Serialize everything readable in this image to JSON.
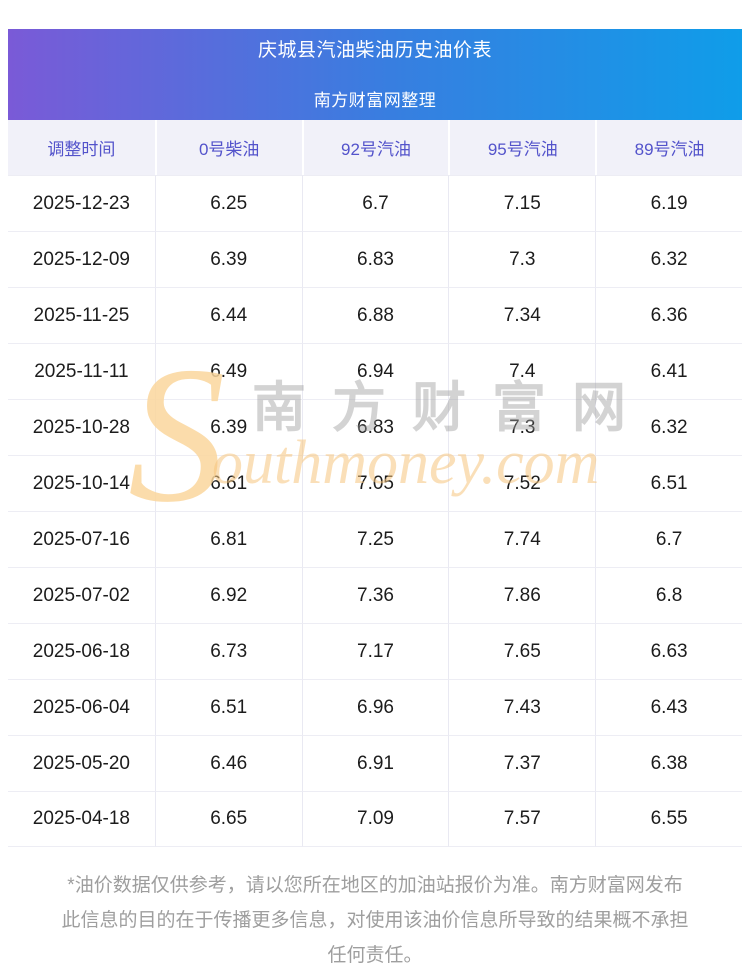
{
  "banner": {
    "title": "庆城县汽油柴油历史油价表",
    "subtitle": "南方财富网整理"
  },
  "table": {
    "columns": [
      "调整时间",
      "0号柴油",
      "92号汽油",
      "95号汽油",
      "89号汽油"
    ],
    "rows": [
      [
        "2025-12-23",
        "6.25",
        "6.7",
        "7.15",
        "6.19"
      ],
      [
        "2025-12-09",
        "6.39",
        "6.83",
        "7.3",
        "6.32"
      ],
      [
        "2025-11-25",
        "6.44",
        "6.88",
        "7.34",
        "6.36"
      ],
      [
        "2025-11-11",
        "6.49",
        "6.94",
        "7.4",
        "6.41"
      ],
      [
        "2025-10-28",
        "6.39",
        "6.83",
        "7.3",
        "6.32"
      ],
      [
        "2025-10-14",
        "6.61",
        "7.05",
        "7.52",
        "6.51"
      ],
      [
        "2025-07-16",
        "6.81",
        "7.25",
        "7.74",
        "6.7"
      ],
      [
        "2025-07-02",
        "6.92",
        "7.36",
        "7.86",
        "6.8"
      ],
      [
        "2025-06-18",
        "6.73",
        "7.17",
        "7.65",
        "6.63"
      ],
      [
        "2025-06-04",
        "6.51",
        "6.96",
        "7.43",
        "6.43"
      ],
      [
        "2025-05-20",
        "6.46",
        "6.91",
        "7.37",
        "6.38"
      ],
      [
        "2025-04-18",
        "6.65",
        "7.09",
        "7.57",
        "6.55"
      ]
    ]
  },
  "watermark": {
    "s": "S",
    "cn": "南方财富网",
    "en": "outhmoney.com"
  },
  "footer": {
    "lines": [
      "*油价数据仅供参考，请以您所在地区的加油站报价为准。南方财富网发布",
      "此信息的目的在于传播更多信息，对使用该油价信息所导致的结果概不承担",
      "任何责任。"
    ]
  },
  "colors": {
    "gradient_start": "#7a5ad7",
    "gradient_mid": "#387ee0",
    "gradient_end": "#0f9de9",
    "header_row_bg": "#f1f1f9",
    "header_row_text": "#5353cb",
    "divider": "#ededf4",
    "body_text": "#1c1c1c",
    "footer_text": "#9e9e9e",
    "watermark_orange": "#f5c47d"
  }
}
